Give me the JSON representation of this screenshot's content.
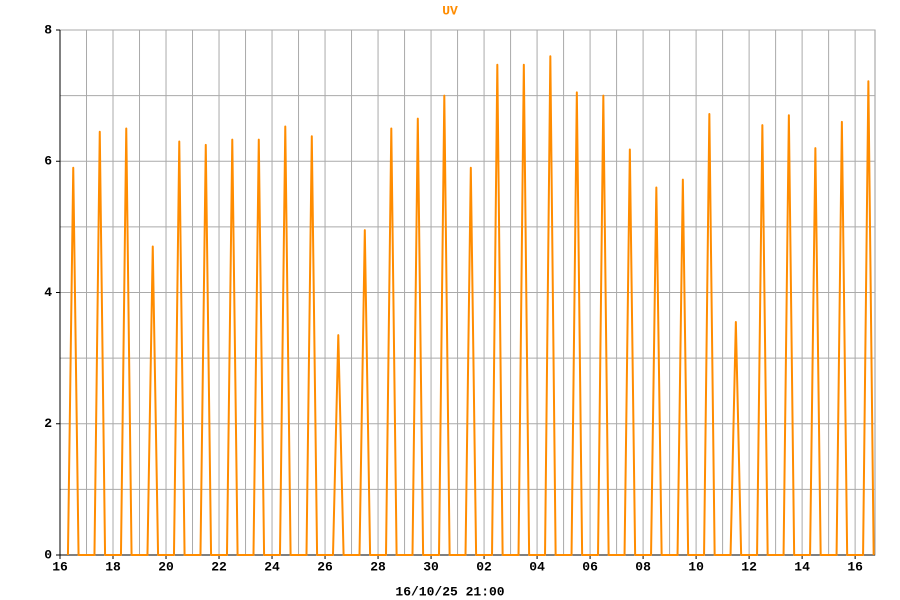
{
  "chart_data": {
    "type": "line",
    "title": "UV",
    "footer": "16/10/25 21:00",
    "color": "#ff8c00",
    "grid": true,
    "xlim": [
      0,
      30.75
    ],
    "ylim": [
      0,
      8
    ],
    "xticks": [
      {
        "value": 0,
        "label": "16"
      },
      {
        "value": 2,
        "label": "18"
      },
      {
        "value": 4,
        "label": "20"
      },
      {
        "value": 6,
        "label": "22"
      },
      {
        "value": 8,
        "label": "24"
      },
      {
        "value": 10,
        "label": "26"
      },
      {
        "value": 12,
        "label": "28"
      },
      {
        "value": 14,
        "label": "30"
      },
      {
        "value": 16,
        "label": "02"
      },
      {
        "value": 18,
        "label": "04"
      },
      {
        "value": 20,
        "label": "06"
      },
      {
        "value": 22,
        "label": "08"
      },
      {
        "value": 24,
        "label": "10"
      },
      {
        "value": 26,
        "label": "12"
      },
      {
        "value": 28,
        "label": "14"
      },
      {
        "value": 30,
        "label": "16"
      }
    ],
    "xminor": [
      1,
      3,
      5,
      7,
      9,
      11,
      13,
      15,
      17,
      19,
      21,
      23,
      25,
      27,
      29
    ],
    "yticks": [
      0,
      2,
      4,
      6,
      8
    ],
    "yminor": [
      1,
      3,
      5,
      7
    ],
    "x": [
      0.3,
      0.5,
      0.7,
      1.3,
      1.5,
      1.7,
      2.3,
      2.5,
      2.7,
      3.3,
      3.5,
      3.7,
      4.3,
      4.5,
      4.7,
      5.3,
      5.5,
      5.7,
      6.3,
      6.5,
      6.7,
      7.3,
      7.5,
      7.7,
      8.3,
      8.5,
      8.7,
      9.3,
      9.5,
      9.7,
      10.3,
      10.5,
      10.7,
      11.3,
      11.5,
      11.7,
      12.3,
      12.5,
      12.7,
      13.3,
      13.5,
      13.7,
      14.3,
      14.5,
      14.7,
      15.3,
      15.5,
      15.7,
      16.3,
      16.5,
      16.7,
      17.3,
      17.5,
      17.7,
      18.3,
      18.5,
      18.7,
      19.3,
      19.5,
      19.7,
      20.3,
      20.5,
      20.7,
      21.3,
      21.5,
      21.7,
      22.3,
      22.5,
      22.7,
      23.3,
      23.5,
      23.7,
      24.3,
      24.5,
      24.7,
      25.3,
      25.5,
      25.7,
      26.3,
      26.5,
      26.7,
      27.3,
      27.5,
      27.7,
      28.3,
      28.5,
      28.7,
      29.3,
      29.5,
      29.7,
      30.3,
      30.5,
      30.7
    ],
    "values": [
      0,
      5.9,
      0,
      0,
      6.45,
      0,
      0,
      6.5,
      0,
      0,
      4.7,
      0,
      0,
      6.3,
      0,
      0,
      6.25,
      0,
      0,
      6.33,
      0,
      0,
      6.33,
      0,
      0,
      6.53,
      0,
      0,
      6.38,
      0,
      0,
      3.35,
      0,
      0,
      4.95,
      0,
      0,
      6.5,
      0,
      0,
      6.65,
      0,
      0,
      7.0,
      0,
      0,
      5.9,
      0,
      0,
      7.47,
      0,
      0,
      7.47,
      0,
      0,
      7.6,
      0,
      0,
      7.05,
      0,
      0,
      7.0,
      0,
      0,
      6.18,
      0,
      0,
      5.6,
      0,
      0,
      5.72,
      0,
      0,
      6.72,
      0,
      0,
      3.55,
      0,
      0,
      6.55,
      0,
      0,
      6.7,
      0,
      0,
      6.2,
      0,
      0,
      6.6,
      0,
      0,
      7.22,
      0
    ]
  }
}
